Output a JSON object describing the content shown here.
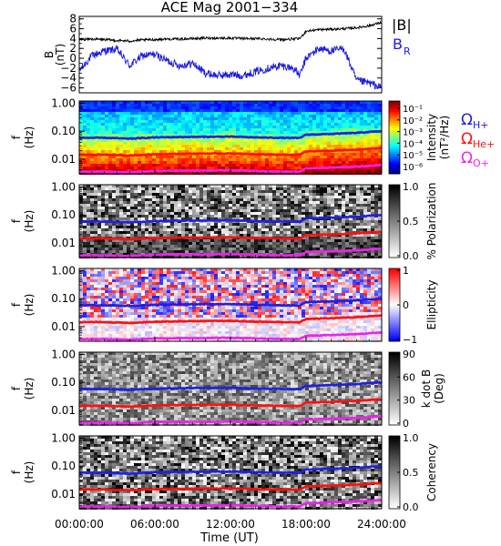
{
  "title": "ACE Mag 2001−334",
  "colors": {
    "black": "#000000",
    "blue": "#2020e0",
    "red": "#ff1010",
    "magenta": "#ee22ee",
    "b_total": "#000000",
    "b_r": "#1a1adf"
  },
  "top_panel": {
    "ylabel_top": "B",
    "ylabel_bottom": "(nT)",
    "yticks": [
      "8",
      "6",
      "4",
      "2",
      "0",
      "−2",
      "−4",
      "−6"
    ],
    "legend_b": "|B|",
    "legend_br_main": "B",
    "legend_br_sub": "R"
  },
  "cyclotron_legend": [
    {
      "main": "Ω",
      "sub": "H+",
      "color": "#2020e0"
    },
    {
      "main": "Ω",
      "sub": "He+",
      "color": "#ff1010"
    },
    {
      "main": "Ω",
      "sub": "O+",
      "color": "#ee22ee"
    }
  ],
  "freq_axis": {
    "ylabel_top": "f",
    "ylabel_bottom": "(Hz)",
    "ticks": [
      "1.00",
      "0.10",
      "0.01"
    ]
  },
  "panels": [
    {
      "colorbar_label": "Intensity",
      "colorbar_label2": "(nT²/Hz)",
      "cbar_ticks": [
        "10⁻¹",
        "10⁻²",
        "10⁻³",
        "10⁻⁴",
        "10⁻⁵",
        "10⁻⁶"
      ]
    },
    {
      "colorbar_label": "% Polarization",
      "colorbar_label2": "",
      "cbar_ticks": [
        "1.0",
        "0.5",
        "0.0"
      ]
    },
    {
      "colorbar_label": "Ellipticity",
      "colorbar_label2": "",
      "cbar_ticks": [
        "1",
        "0",
        "−1"
      ]
    },
    {
      "colorbar_label": "k dot B",
      "colorbar_label2": "(Deg)",
      "cbar_ticks": [
        "90",
        "60",
        "30",
        "0"
      ]
    },
    {
      "colorbar_label": "Coherency",
      "colorbar_label2": "",
      "cbar_ticks": [
        "1.0",
        "0.5",
        "0.0"
      ]
    }
  ],
  "x_axis": {
    "ticks": [
      "00:00:00",
      "06:00:00",
      "12:00:00",
      "18:00:00",
      "24:00:00"
    ],
    "label": "Time (UT)"
  },
  "chart_data": [
    {
      "type": "line",
      "title": "ACE Mag 2001−334",
      "ylabel": "B (nT)",
      "ylim": [
        -7,
        8.5
      ],
      "x_hours": [
        0,
        1,
        2,
        3,
        4,
        5,
        6,
        7,
        8,
        9,
        10,
        11,
        12,
        13,
        14,
        15,
        16,
        17,
        17.5,
        18,
        19,
        20,
        21,
        22,
        23,
        24
      ],
      "series": [
        {
          "name": "|B|",
          "values": [
            3.8,
            3.9,
            3.8,
            3.6,
            3.5,
            3.7,
            3.8,
            3.9,
            3.9,
            4.0,
            4.1,
            4.1,
            4.1,
            4.0,
            4.0,
            3.9,
            3.8,
            3.9,
            4.0,
            5.5,
            5.8,
            5.9,
            6.0,
            6.2,
            6.6,
            7.3
          ]
        },
        {
          "name": "B_R",
          "values": [
            -2.5,
            0.5,
            1.5,
            1.8,
            -1.5,
            0.5,
            0.8,
            -0.5,
            -1.5,
            -1.0,
            -3.0,
            -3.5,
            -3.3,
            -3.5,
            -2.7,
            -2.0,
            -1.5,
            -2.0,
            -3.5,
            0.0,
            2.0,
            1.5,
            2.0,
            -4.5,
            -5.0,
            -6.0
          ]
        }
      ]
    },
    {
      "type": "heatmap",
      "yscale": "log",
      "ylim": [
        0.003,
        1.2
      ],
      "x_hours": [
        0,
        2,
        4,
        6,
        8,
        10,
        12,
        14,
        16,
        17.5,
        18,
        20,
        22,
        24
      ],
      "series": [
        {
          "name": "ΩH+",
          "values": [
            0.058,
            0.058,
            0.054,
            0.06,
            0.062,
            0.063,
            0.064,
            0.06,
            0.058,
            0.057,
            0.075,
            0.08,
            0.087,
            0.1
          ]
        },
        {
          "name": "ΩHe+",
          "values": [
            0.0145,
            0.0145,
            0.0135,
            0.015,
            0.0155,
            0.0158,
            0.016,
            0.015,
            0.0145,
            0.0142,
            0.0188,
            0.02,
            0.0218,
            0.025
          ]
        },
        {
          "name": "ΩO+",
          "values": [
            0.0036,
            0.0036,
            0.0034,
            0.0038,
            0.0039,
            0.0039,
            0.004,
            0.0038,
            0.0036,
            0.0036,
            0.0047,
            0.005,
            0.0054,
            0.0062
          ]
        }
      ]
    }
  ]
}
